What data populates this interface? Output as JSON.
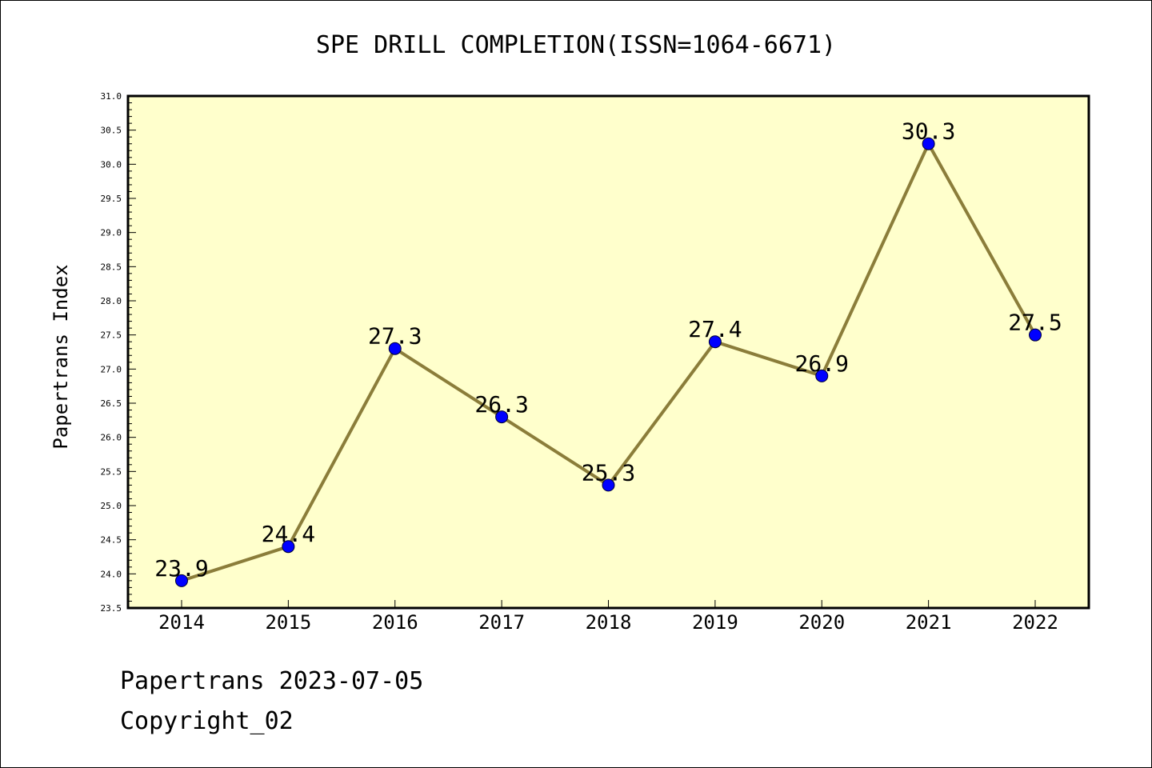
{
  "footer": {
    "line1": "Papertrans 2023-07-05",
    "line2": "Copyright_02"
  },
  "colors": {
    "plot_background": "#ffffcc",
    "line": "#8b7d3a",
    "marker": "#0000ff",
    "axis": "#000000"
  },
  "chart_data": {
    "type": "line",
    "title": "SPE DRILL COMPLETION(ISSN=1064-6671)",
    "xlabel": "",
    "ylabel": "Papertrans Index",
    "categories": [
      "2014",
      "2015",
      "2016",
      "2017",
      "2018",
      "2019",
      "2020",
      "2021",
      "2022"
    ],
    "series": [
      {
        "values": [
          23.9,
          24.4,
          27.3,
          26.3,
          25.3,
          27.4,
          26.9,
          30.3,
          27.5
        ],
        "data_labels": [
          "23.9",
          "24.4",
          "27.3",
          "26.3",
          "25.3",
          "27.4",
          "26.9",
          "30.3",
          "27.5"
        ]
      }
    ],
    "ylim": [
      23.5,
      31.0
    ],
    "yticks": [
      "23.5",
      "24.0",
      "24.5",
      "25.0",
      "25.5",
      "26.0",
      "26.5",
      "27.0",
      "27.5",
      "28.0",
      "28.5",
      "29.0",
      "29.5",
      "30.0",
      "30.5",
      "31.0"
    ],
    "grid": false,
    "legend": "none",
    "marker": "circle"
  }
}
